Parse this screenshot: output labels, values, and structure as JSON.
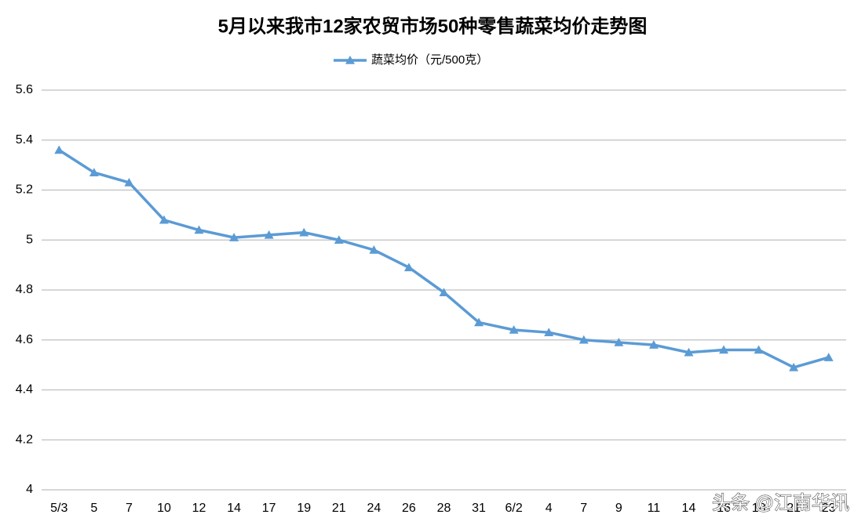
{
  "chart_data": {
    "type": "line",
    "title": "5月以来我市12家农贸市场50种零售蔬菜均价走势图",
    "categories": [
      "5/3",
      "5",
      "7",
      "10",
      "12",
      "14",
      "17",
      "19",
      "21",
      "24",
      "26",
      "28",
      "31",
      "6/2",
      "4",
      "7",
      "9",
      "11",
      "14",
      "16",
      "18",
      "21",
      "23"
    ],
    "series": [
      {
        "name": "蔬菜均价（元/500克）",
        "color": "#5b9bd5",
        "values": [
          5.36,
          5.27,
          5.23,
          5.08,
          5.04,
          5.01,
          5.02,
          5.03,
          5.0,
          4.96,
          4.89,
          4.79,
          4.67,
          4.64,
          4.63,
          4.6,
          4.59,
          4.58,
          4.55,
          4.56,
          4.56,
          4.49,
          4.53
        ]
      }
    ],
    "ylim": [
      4,
      5.6
    ],
    "yticks": [
      4,
      4.2,
      4.4,
      4.6,
      4.8,
      5,
      5.2,
      5.4,
      5.6
    ],
    "grid": true,
    "legend": "top"
  },
  "watermark": "头条 @江南华讯"
}
